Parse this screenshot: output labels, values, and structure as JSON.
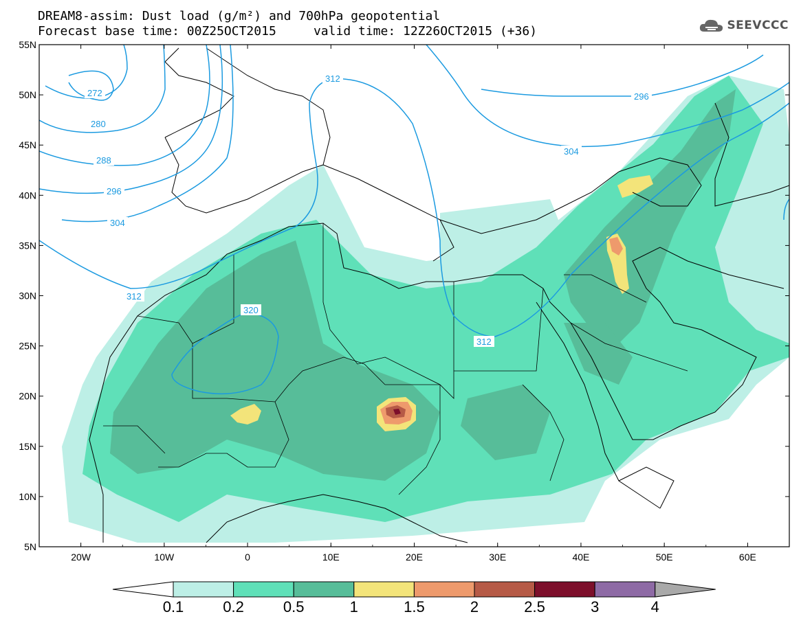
{
  "title_line1": "DREAM8-assim: Dust load (g/m²) and 700hPa geopotential",
  "title_line2": "Forecast base time: 00Z25OCT2015     valid time: 12Z26OCT2015 (+36)",
  "logo_text": "SEEVCCC",
  "map": {
    "lon_range": [
      -25,
      65
    ],
    "lat_range": [
      5,
      55
    ],
    "lat_ticks": [
      "55N",
      "50N",
      "45N",
      "40N",
      "35N",
      "30N",
      "25N",
      "20N",
      "15N",
      "10N",
      "5N"
    ],
    "lon_ticks": [
      "20W",
      "10W",
      "0",
      "10E",
      "20E",
      "30E",
      "40E",
      "50E",
      "60E"
    ],
    "contour_labels": [
      "272",
      "280",
      "288",
      "296",
      "304",
      "312",
      "320",
      "312",
      "312",
      "304",
      "296"
    ]
  },
  "colorbar": {
    "labels": [
      "0.1",
      "0.2",
      "0.5",
      "1",
      "1.5",
      "2",
      "2.5",
      "3",
      "4"
    ],
    "colors": [
      "#ffffff",
      "#bdefe6",
      "#5fe0b8",
      "#57bd99",
      "#f3e47a",
      "#ee9a6c",
      "#b65a46",
      "#7d0f2b",
      "#8e6aa5",
      "#a9a9a9"
    ]
  }
}
